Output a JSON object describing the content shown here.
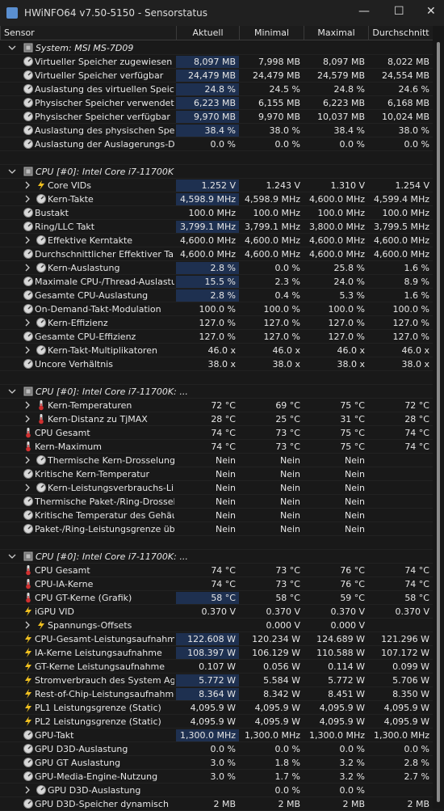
{
  "window": {
    "title": "HWiNFO64 v7.50-5150 - Sensorstatus"
  },
  "header": {
    "columns": [
      "Sensor",
      "Aktuell",
      "Minimal",
      "Maximal",
      "Durchschnitt"
    ]
  },
  "groups": [
    {
      "title": "System: MSI MS-7D09",
      "rows": [
        {
          "label": "Virtueller Speicher zugewiesen",
          "values": [
            "8,097 MB",
            "7,998 MB",
            "8,097 MB",
            "8,022 MB"
          ]
        },
        {
          "label": "Virtueller Speicher verfügbar",
          "values": [
            "24,479 MB",
            "24,479 MB",
            "24,579 MB",
            "24,554 MB"
          ]
        },
        {
          "label": "Auslastung des virtuellen Speichers",
          "values": [
            "24.8 %",
            "24.5 %",
            "24.8 %",
            "24.6 %"
          ]
        },
        {
          "label": "Physischer Speicher verwendet",
          "values": [
            "6,223 MB",
            "6,155 MB",
            "6,223 MB",
            "6,168 MB"
          ]
        },
        {
          "label": "Physischer Speicher verfügbar",
          "values": [
            "9,970 MB",
            "9,970 MB",
            "10,037 MB",
            "10,024 MB"
          ]
        },
        {
          "label": "Auslastung des physischen Speic...",
          "values": [
            "38.4 %",
            "38.0 %",
            "38.4 %",
            "38.0 %"
          ]
        },
        {
          "label": "Auslastung der Auslagerungs-Datei",
          "values": [
            "0.0 %",
            "0.0 %",
            "0.0 %",
            "0.0 %"
          ]
        }
      ]
    },
    {
      "title": "CPU [#0]: Intel Core i7-11700K",
      "rows": [
        {
          "label": "Core VIDs",
          "values": [
            "1.252 V",
            "1.243 V",
            "1.310 V",
            "1.254 V"
          ]
        },
        {
          "label": "Kern-Takte",
          "values": [
            "4,598.9 MHz",
            "4,598.9 MHz",
            "4,600.0 MHz",
            "4,599.4 MHz"
          ]
        },
        {
          "label": "Bustakt",
          "values": [
            "100.0 MHz",
            "100.0 MHz",
            "100.0 MHz",
            "100.0 MHz"
          ]
        },
        {
          "label": "Ring/LLC Takt",
          "values": [
            "3,799.1 MHz",
            "3,799.1 MHz",
            "3,800.0 MHz",
            "3,799.5 MHz"
          ]
        },
        {
          "label": "Effektive Kerntakte",
          "values": [
            "4,600.0 MHz",
            "4,600.0 MHz",
            "4,600.0 MHz",
            "4,600.0 MHz"
          ]
        },
        {
          "label": "Durchschnittlicher Effektiver Takt",
          "values": [
            "4,600.0 MHz",
            "4,600.0 MHz",
            "4,600.0 MHz",
            "4,600.0 MHz"
          ]
        },
        {
          "label": "Kern-Auslastung",
          "values": [
            "2.8 %",
            "0.0 %",
            "25.8 %",
            "1.6 %"
          ]
        },
        {
          "label": "Maximale CPU-/Thread-Auslastung",
          "values": [
            "15.5 %",
            "2.3 %",
            "24.0 %",
            "8.9 %"
          ]
        },
        {
          "label": "Gesamte CPU-Auslastung",
          "values": [
            "2.8 %",
            "0.4 %",
            "5.3 %",
            "1.6 %"
          ]
        },
        {
          "label": "On-Demand-Takt-Modulation",
          "values": [
            "100.0 %",
            "100.0 %",
            "100.0 %",
            "100.0 %"
          ]
        },
        {
          "label": "Kern-Effizienz",
          "values": [
            "127.0 %",
            "127.0 %",
            "127.0 %",
            "127.0 %"
          ]
        },
        {
          "label": "Gesamte CPU-Effizienz",
          "values": [
            "127.0 %",
            "127.0 %",
            "127.0 %",
            "127.0 %"
          ]
        },
        {
          "label": "Kern-Takt-Multiplikatoren",
          "values": [
            "46.0 x",
            "46.0 x",
            "46.0 x",
            "46.0 x"
          ]
        },
        {
          "label": "Uncore Verhältnis",
          "values": [
            "38.0 x",
            "38.0 x",
            "38.0 x",
            "38.0 x"
          ]
        }
      ]
    },
    {
      "title": "CPU [#0]: Intel Core i7-11700K: ...",
      "rows": [
        {
          "label": "Kern-Temperaturen",
          "values": [
            "72 °C",
            "69 °C",
            "75 °C",
            "72 °C"
          ]
        },
        {
          "label": "Kern-Distanz zu TjMAX",
          "values": [
            "28 °C",
            "25 °C",
            "31 °C",
            "28 °C"
          ]
        },
        {
          "label": "CPU Gesamt",
          "values": [
            "74 °C",
            "73 °C",
            "75 °C",
            "74 °C"
          ]
        },
        {
          "label": "Kern-Maximum",
          "values": [
            "74 °C",
            "73 °C",
            "75 °C",
            "74 °C"
          ]
        },
        {
          "label": "Thermische Kern-Drosselung",
          "values": [
            "Nein",
            "Nein",
            "Nein",
            null
          ]
        },
        {
          "label": "Kritische Kern-Temperatur",
          "values": [
            "Nein",
            "Nein",
            "Nein",
            null
          ]
        },
        {
          "label": "Kern-Leistungsverbrauchs-Li...",
          "values": [
            "Nein",
            "Nein",
            "Nein",
            null
          ]
        },
        {
          "label": "Thermische Paket-/Ring-Drosselung",
          "values": [
            "Nein",
            "Nein",
            "Nein",
            null
          ]
        },
        {
          "label": "Kritische Temperatur des Gehäus...",
          "values": [
            "Nein",
            "Nein",
            "Nein",
            null
          ]
        },
        {
          "label": "Paket-/Ring-Leistungsgrenze übe...",
          "values": [
            "Nein",
            "Nein",
            "Nein",
            null
          ]
        }
      ]
    },
    {
      "title": "CPU [#0]: Intel Core i7-11700K: ...",
      "rows": [
        {
          "label": "CPU Gesamt",
          "values": [
            "74 °C",
            "73 °C",
            "76 °C",
            "74 °C"
          ]
        },
        {
          "label": "CPU-IA-Kerne",
          "values": [
            "74 °C",
            "73 °C",
            "76 °C",
            "74 °C"
          ]
        },
        {
          "label": "CPU GT-Kerne (Grafik)",
          "values": [
            "58 °C",
            "58 °C",
            "59 °C",
            "58 °C"
          ]
        },
        {
          "label": "iGPU VID",
          "values": [
            "0.370 V",
            "0.370 V",
            "0.370 V",
            "0.370 V"
          ]
        },
        {
          "label": "Spannungs-Offsets",
          "values": [
            null,
            "0.000 V",
            "0.000 V",
            null
          ]
        },
        {
          "label": "CPU-Gesamt-Leistungsaufnahme",
          "values": [
            "122.608 W",
            "120.234 W",
            "124.689 W",
            "121.296 W"
          ]
        },
        {
          "label": "IA-Kerne Leistungsaufnahme",
          "values": [
            "108.397 W",
            "106.129 W",
            "110.588 W",
            "107.172 W"
          ]
        },
        {
          "label": "GT-Kerne Leistungsaufnahme",
          "values": [
            "0.107 W",
            "0.056 W",
            "0.114 W",
            "0.099 W"
          ]
        },
        {
          "label": "Stromverbrauch des System Agent",
          "values": [
            "5.772 W",
            "5.584 W",
            "5.772 W",
            "5.706 W"
          ]
        },
        {
          "label": "Rest-of-Chip-Leistungsaufnahme",
          "values": [
            "8.364 W",
            "8.342 W",
            "8.451 W",
            "8.350 W"
          ]
        },
        {
          "label": "PL1 Leistungsgrenze (Static)",
          "values": [
            "4,095.9 W",
            "4,095.9 W",
            "4,095.9 W",
            "4,095.9 W"
          ]
        },
        {
          "label": "PL2 Leistungsgrenze (Static)",
          "values": [
            "4,095.9 W",
            "4,095.9 W",
            "4,095.9 W",
            "4,095.9 W"
          ]
        },
        {
          "label": "GPU-Takt",
          "values": [
            "1,300.0 MHz",
            "1,300.0 MHz",
            "1,300.0 MHz",
            "1,300.0 MHz"
          ]
        },
        {
          "label": "GPU D3D-Auslastung",
          "values": [
            "0.0 %",
            "0.0 %",
            "0.0 %",
            "0.0 %"
          ]
        },
        {
          "label": "GPU GT Auslastung",
          "values": [
            "3.0 %",
            "1.8 %",
            "3.2 %",
            "2.8 %"
          ]
        },
        {
          "label": "GPU-Media-Engine-Nutzung",
          "values": [
            "3.0 %",
            "1.7 %",
            "3.2 %",
            "2.7 %"
          ]
        },
        {
          "label": "GPU D3D-Auslastung",
          "values": [
            null,
            "0.0 %",
            "0.0 %",
            null
          ]
        },
        {
          "label": "GPU D3D-Speicher dynamisch",
          "values": [
            "2 MB",
            "2 MB",
            "2 MB",
            "2 MB"
          ]
        }
      ]
    }
  ]
}
